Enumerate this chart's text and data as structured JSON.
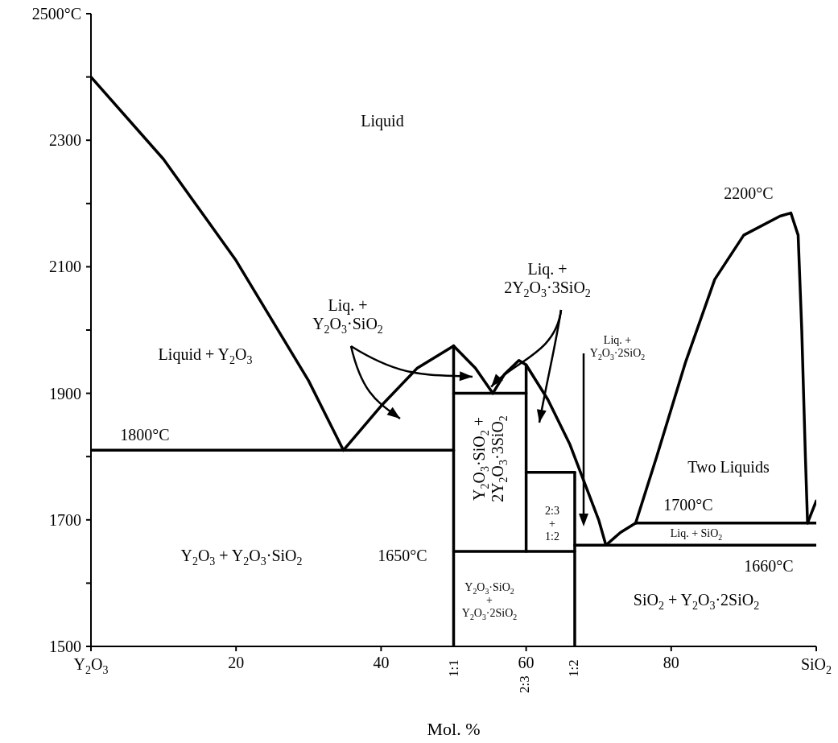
{
  "chart_data": {
    "type": "line",
    "xlabel": "Mol. %",
    "xlim": [
      0,
      100
    ],
    "xticks": [
      {
        "value": 0,
        "label": null
      },
      20,
      40,
      60,
      80,
      {
        "value": 100,
        "label": null
      }
    ],
    "ylim": [
      1500,
      2500
    ],
    "yticks": [
      1500,
      {
        "value": 1600,
        "label": null
      },
      1700,
      {
        "value": 1800,
        "label": null
      },
      1900,
      {
        "value": 2000,
        "label": null
      },
      2100,
      {
        "value": 2200,
        "label": null
      },
      2300,
      {
        "value": 2400,
        "label": null
      },
      {
        "value": 2500,
        "label": "2500°C"
      }
    ],
    "series": [
      {
        "color": "#000000",
        "x": [
          0,
          10,
          20,
          30,
          34.8
        ],
        "values": [
          2400,
          2270,
          2110,
          1920,
          1810
        ]
      },
      {
        "color": "#000000",
        "x": [
          34.8,
          40,
          45,
          50
        ],
        "values": [
          1810,
          1880,
          1940,
          1975
        ]
      },
      {
        "color": "#000000",
        "x": [
          50,
          53,
          55.4
        ],
        "values": [
          1975,
          1940,
          1900
        ]
      },
      {
        "color": "#000000",
        "x": [
          55.4,
          57,
          59,
          60,
          63,
          66,
          68,
          70,
          71
        ],
        "values": [
          1900,
          1930,
          1952,
          1945,
          1890,
          1820,
          1760,
          1700,
          1660
        ]
      },
      {
        "color": "#000000",
        "x": [
          71,
          73,
          75.1
        ],
        "values": [
          1660,
          1680,
          1695
        ]
      },
      {
        "color": "#000000",
        "x": [
          75.1,
          78,
          82,
          86,
          90,
          95,
          96.5,
          97.5,
          98,
          98.5,
          98.8
        ],
        "values": [
          1695,
          1800,
          1950,
          2080,
          2150,
          2180,
          2185,
          2150,
          2000,
          1800,
          1695
        ]
      },
      {
        "color": "#000000",
        "x": [
          98.8,
          100
        ],
        "values": [
          1695,
          1730
        ]
      },
      {
        "color": "#000000",
        "x": [
          0,
          50
        ],
        "values": [
          1810,
          1810
        ]
      },
      {
        "color": "#000000",
        "x": [
          50,
          50
        ],
        "values": [
          1500,
          1975
        ]
      },
      {
        "color": "#000000",
        "x": [
          50,
          60
        ],
        "values": [
          1900,
          1900
        ]
      },
      {
        "color": "#000000",
        "x": [
          60,
          60
        ],
        "values": [
          1650,
          1945
        ]
      },
      {
        "color": "#000000",
        "x": [
          50,
          66.7
        ],
        "values": [
          1650,
          1650
        ]
      },
      {
        "color": "#000000",
        "x": [
          66.7,
          66.7
        ],
        "values": [
          1500,
          1775
        ]
      },
      {
        "color": "#000000",
        "x": [
          60,
          66.7
        ],
        "values": [
          1775,
          1775
        ]
      },
      {
        "color": "#000000",
        "x": [
          66.7,
          100
        ],
        "values": [
          1660,
          1660
        ]
      },
      {
        "color": "#000000",
        "x": [
          75.1,
          100
        ],
        "values": [
          1695,
          1695
        ]
      }
    ],
    "annotations": [
      "Liquid",
      "Liquid + Y$_{2}$O$_{3}$",
      "Liq. +\nY$_{2}$O$_{3}$·SiO$_{2}$",
      {
        "text": "Liq. +\n2Y$_{2}$O$_{3}$·3SiO$_{2}$",
        "x": 55.4,
        "y": 1900
      },
      "Liq. +\nY$_{2}$O$_{3}$·2SiO$_{2}$",
      "1800°C",
      "Y$_{2}$O$_{3}$ + Y$_{2}$O$_{3}$·SiO$_{2}$",
      "1650°C",
      "Y$_{2}$O$_{3}$·SiO$_{2}$ +\n2Y$_{2}$O$_{3}$·3SiO$_{2}$",
      "2:3\n+\n1:2",
      "Y$_{2}$O$_{3}$·SiO$_{2}$\n+\nY$_{2}$O$_{3}$·2SiO$_{2}$",
      "1700°C",
      "Liq. + SiO$_{2}$",
      "1660°C",
      "SiO$_{2}$ + Y$_{2}$O$_{3}$·2SiO$_{2}$",
      "Two Liquids",
      "2200°C",
      "2:3",
      "Y$_{2}$O$_{3}$",
      "SiO$_{2}$",
      "1:1",
      "1:2"
    ]
  }
}
